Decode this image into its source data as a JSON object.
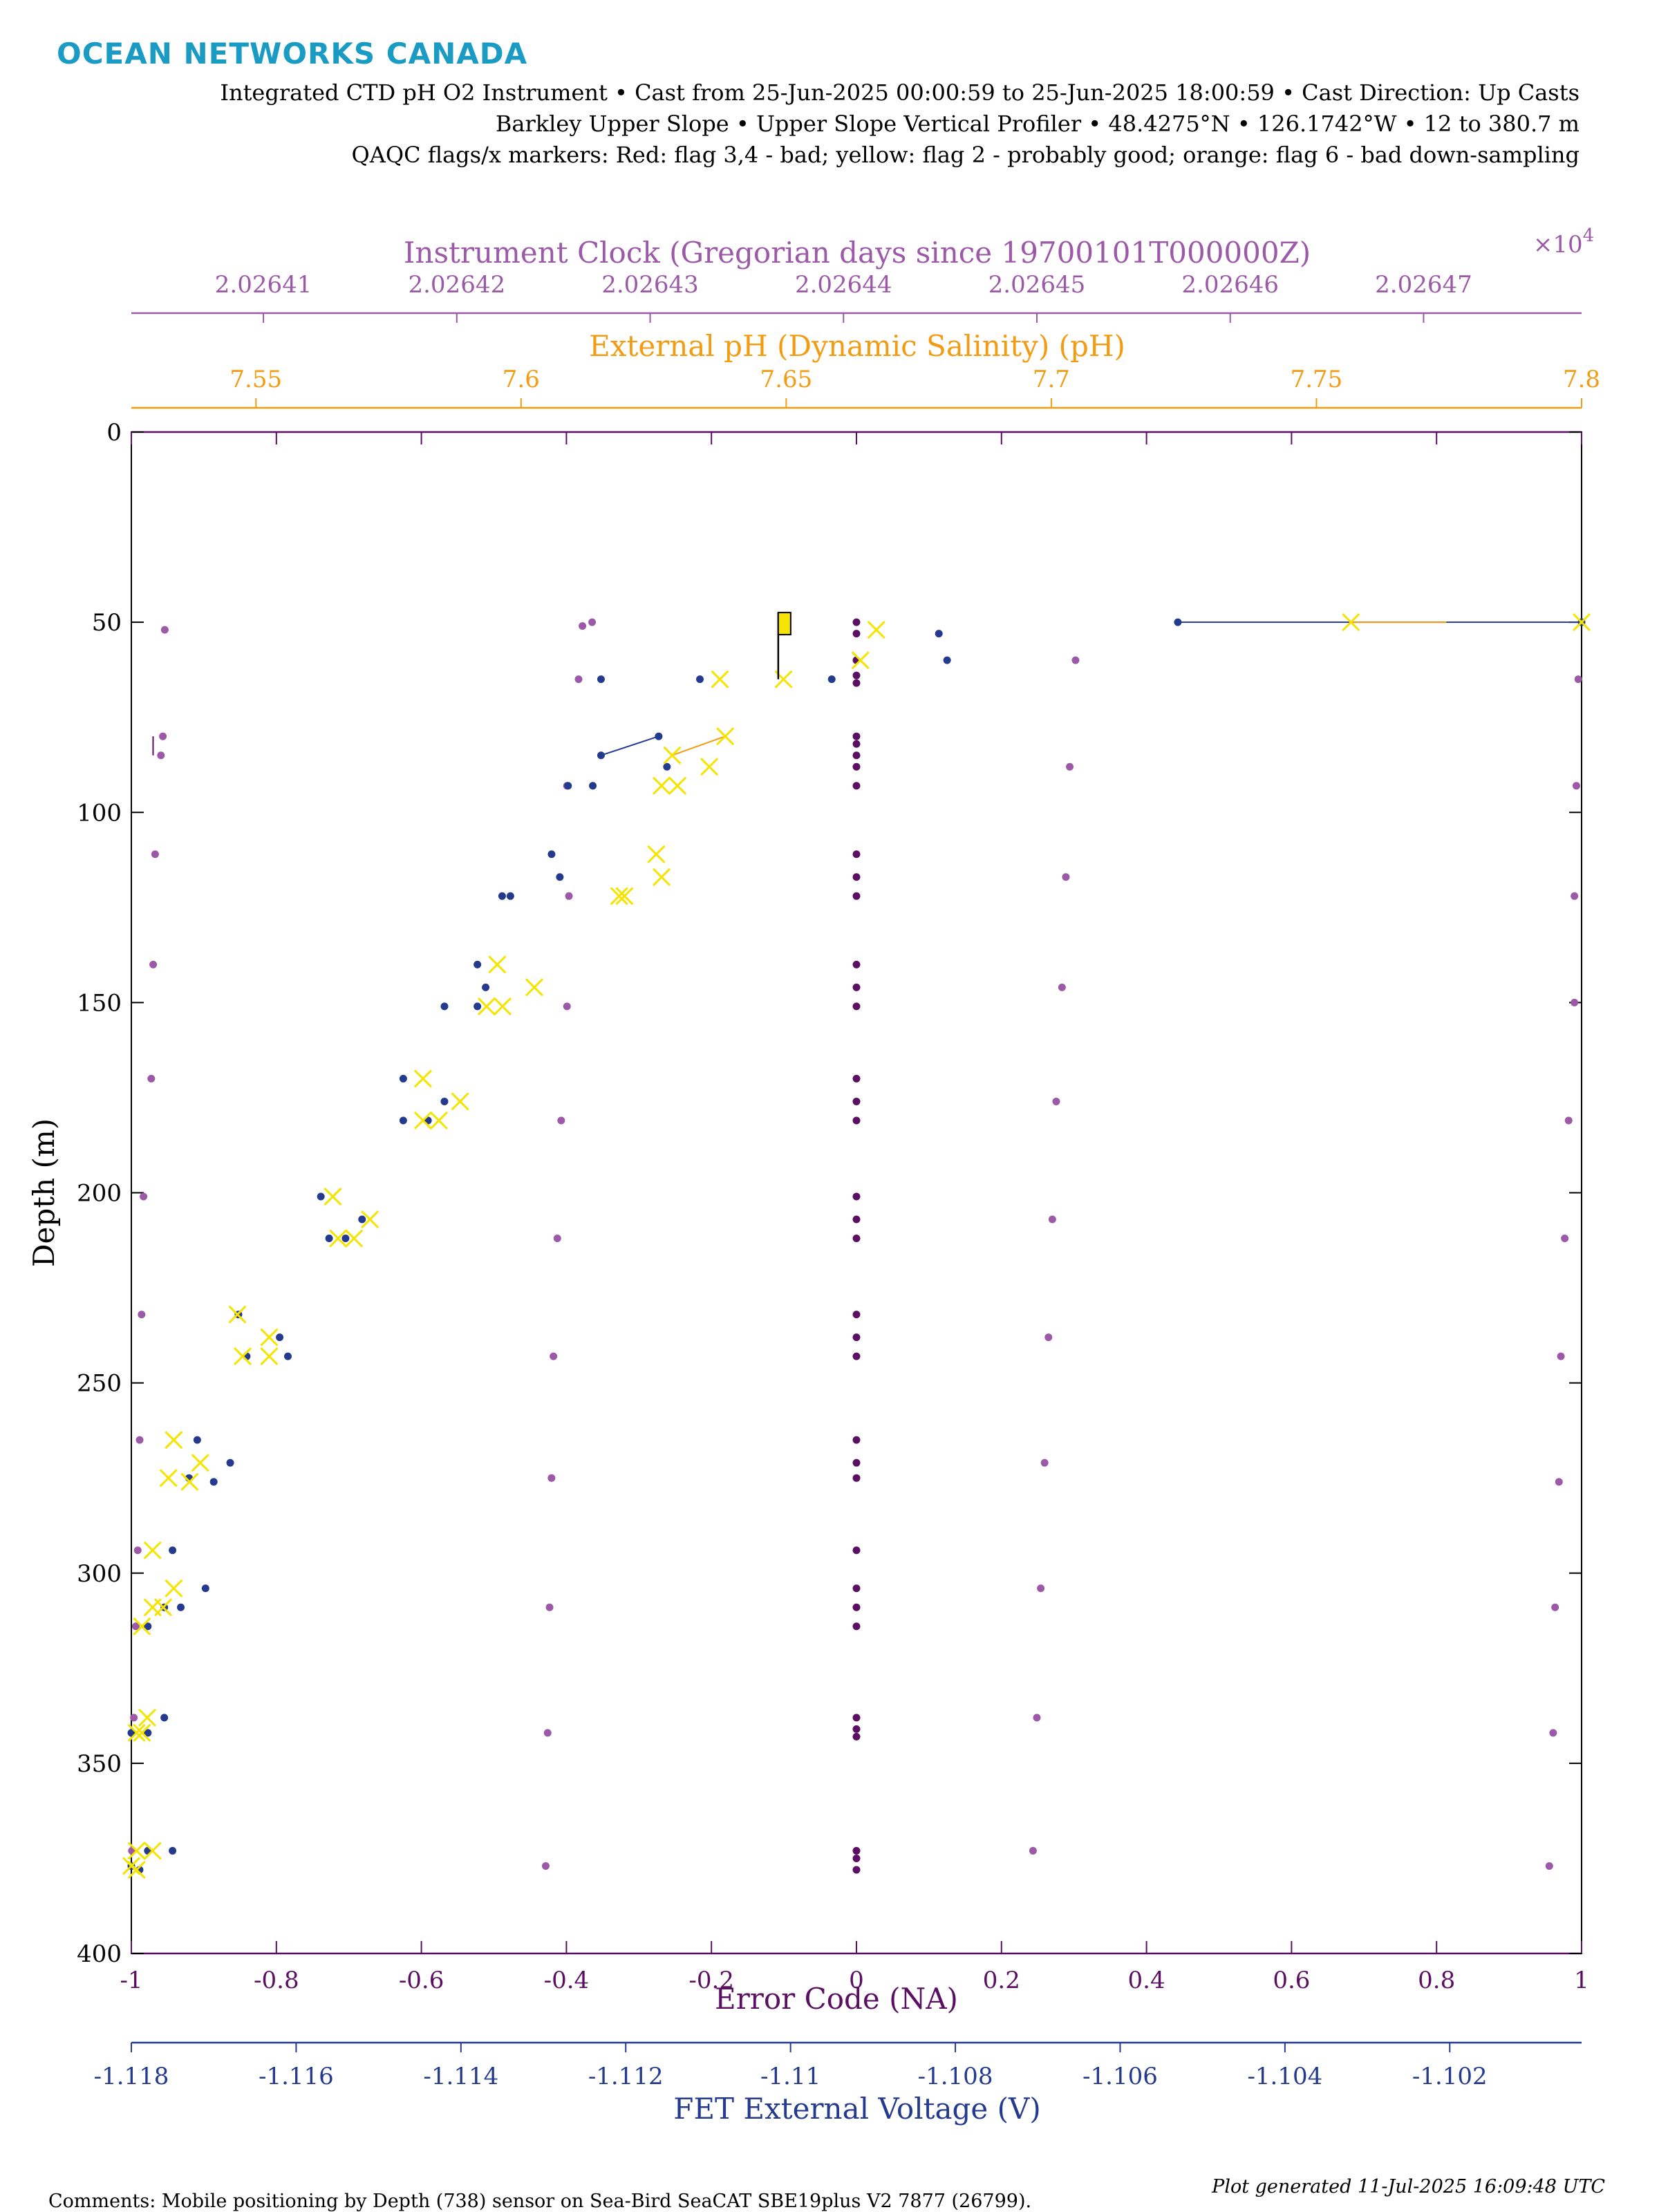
{
  "header": {
    "logo": "OCEAN NETWORKS CANADA",
    "line1": "Integrated CTD pH O2 Instrument • Cast from 25-Jun-2025 00:00:59 to 25-Jun-2025 18:00:59 • Cast Direction: Up Casts",
    "line2": "Barkley Upper Slope • Upper Slope Vertical Profiler • 48.4275°N • 126.1742°W • 12 to 380.7 m",
    "line3": "QAQC flags/x markers: Red: flag 3,4 - bad; yellow: flag 2 - probably good; orange: flag 6 - bad down-sampling"
  },
  "footer": {
    "comments": "Comments: Mobile positioning by Depth (738) sensor on Sea-Bird SeaCAT SBE19plus V2 7877 (26799).",
    "generated": "Plot generated 11-Jul-2025 16:09:48 UTC"
  },
  "colors": {
    "clock": "#9b59a8",
    "ph": "#f39c12",
    "error": "#5b0f63",
    "voltage": "#243a8e",
    "flag_yellow": "#f5e400",
    "flag_orange": "#f39c12"
  },
  "chart_data": {
    "type": "scatter",
    "y_axis": {
      "label": "Depth (m)",
      "range": [
        0,
        400
      ],
      "reversed": true,
      "ticks": [
        0,
        50,
        100,
        150,
        200,
        250,
        300,
        350,
        400
      ]
    },
    "axes": {
      "clock": {
        "label": "Instrument Clock (Gregorian days since 19700101T000000Z)",
        "exponent_label": "×10",
        "exponent_power": "4",
        "range": [
          20264.0317,
          20264.7817
        ],
        "ticks": [
          20264.1,
          20264.2,
          20264.3,
          20264.4,
          20264.5,
          20264.6,
          20264.7
        ],
        "tick_labels": [
          "2.02641",
          "2.02642",
          "2.02643",
          "2.02644",
          "2.02645",
          "2.02646",
          "2.02647"
        ]
      },
      "ph": {
        "label": "External pH (Dynamic Salinity) (pH)",
        "range": [
          7.5265,
          7.8
        ],
        "ticks": [
          7.55,
          7.6,
          7.65,
          7.7,
          7.75,
          7.8
        ],
        "tick_labels": [
          "7.55",
          "7.6",
          "7.65",
          "7.7",
          "7.75",
          "7.8"
        ]
      },
      "error": {
        "label": "Error Code (NA)",
        "range": [
          -1,
          1
        ],
        "ticks": [
          -1,
          -0.8,
          -0.6,
          -0.4,
          -0.2,
          0,
          0.2,
          0.4,
          0.6,
          0.8,
          1
        ],
        "tick_labels": [
          "-1",
          "-0.8",
          "-0.6",
          "-0.4",
          "-0.2",
          "0",
          "0.2",
          "0.4",
          "0.6",
          "0.8",
          "1"
        ]
      },
      "voltage": {
        "label": "FET External Voltage (V)",
        "range": [
          -1.118,
          -1.1004
        ],
        "ticks": [
          -1.118,
          -1.116,
          -1.114,
          -1.112,
          -1.11,
          -1.108,
          -1.106,
          -1.104,
          -1.102
        ],
        "tick_labels": [
          "-1.118",
          "-1.116",
          "-1.114",
          "-1.112",
          "-1.11",
          "-1.108",
          "-1.106",
          "-1.104",
          "-1.102"
        ]
      }
    },
    "series": [
      {
        "axis": "clock",
        "color": "#9b59a8",
        "points": [
          [
            20264.049,
            52
          ],
          [
            20264.048,
            80
          ],
          [
            20264.047,
            85
          ],
          [
            20264.044,
            111
          ],
          [
            20264.043,
            140
          ],
          [
            20264.042,
            170
          ],
          [
            20264.038,
            201
          ],
          [
            20264.037,
            232
          ],
          [
            20264.036,
            265
          ],
          [
            20264.035,
            294
          ],
          [
            20264.034,
            314
          ],
          [
            20264.033,
            338
          ],
          [
            20264.032,
            373
          ],
          [
            20264.27,
            50
          ],
          [
            20264.265,
            51
          ],
          [
            20264.263,
            65
          ],
          [
            20264.257,
            93
          ],
          [
            20264.258,
            122
          ],
          [
            20264.257,
            151
          ],
          [
            20264.254,
            181
          ],
          [
            20264.252,
            212
          ],
          [
            20264.25,
            243
          ],
          [
            20264.249,
            275
          ],
          [
            20264.248,
            309
          ],
          [
            20264.247,
            342
          ],
          [
            20264.246,
            377
          ],
          [
            20264.52,
            60
          ],
          [
            20264.517,
            88
          ],
          [
            20264.515,
            117
          ],
          [
            20264.513,
            146
          ],
          [
            20264.51,
            176
          ],
          [
            20264.508,
            207
          ],
          [
            20264.506,
            238
          ],
          [
            20264.504,
            271
          ],
          [
            20264.502,
            304
          ],
          [
            20264.5,
            338
          ],
          [
            20264.498,
            373
          ],
          [
            20264.78,
            65
          ],
          [
            20264.779,
            93
          ],
          [
            20264.778,
            122
          ],
          [
            20264.778,
            150
          ],
          [
            20264.775,
            181
          ],
          [
            20264.773,
            212
          ],
          [
            20264.771,
            243
          ],
          [
            20264.77,
            276
          ],
          [
            20264.768,
            309
          ],
          [
            20264.767,
            342
          ],
          [
            20264.765,
            377
          ]
        ]
      },
      {
        "axis": "error",
        "color": "#5b0f63",
        "points": [
          [
            0,
            50
          ],
          [
            0,
            53
          ],
          [
            0,
            60
          ],
          [
            0,
            64
          ],
          [
            0,
            66
          ],
          [
            0,
            80
          ],
          [
            0,
            82
          ],
          [
            0,
            85
          ],
          [
            0,
            88
          ],
          [
            0,
            93
          ],
          [
            0,
            111
          ],
          [
            0,
            117
          ],
          [
            0,
            122
          ],
          [
            0,
            140
          ],
          [
            0,
            146
          ],
          [
            0,
            151
          ],
          [
            0,
            170
          ],
          [
            0,
            176
          ],
          [
            0,
            181
          ],
          [
            0,
            201
          ],
          [
            0,
            207
          ],
          [
            0,
            212
          ],
          [
            0,
            232
          ],
          [
            0,
            238
          ],
          [
            0,
            243
          ],
          [
            0,
            265
          ],
          [
            0,
            271
          ],
          [
            0,
            275
          ],
          [
            0,
            294
          ],
          [
            0,
            304
          ],
          [
            0,
            309
          ],
          [
            0,
            314
          ],
          [
            0,
            338
          ],
          [
            0,
            341
          ],
          [
            0,
            343
          ],
          [
            0,
            373
          ],
          [
            0,
            375
          ],
          [
            0,
            378
          ]
        ]
      },
      {
        "axis": "voltage",
        "color": "#243a8e",
        "points": [
          [
            -1.1004,
            50
          ],
          [
            -1.1053,
            50
          ],
          [
            -1.1095,
            65
          ],
          [
            -1.1082,
            53
          ],
          [
            -1.1081,
            60
          ],
          [
            -1.1111,
            65
          ],
          [
            -1.1123,
            65
          ],
          [
            -1.1123,
            85
          ],
          [
            -1.1116,
            80
          ],
          [
            -1.1115,
            88
          ],
          [
            -1.1127,
            93
          ],
          [
            -1.1124,
            93
          ],
          [
            -1.1129,
            111
          ],
          [
            -1.1128,
            117
          ],
          [
            -1.1135,
            122
          ],
          [
            -1.1134,
            122
          ],
          [
            -1.1138,
            140
          ],
          [
            -1.1137,
            146
          ],
          [
            -1.1142,
            151
          ],
          [
            -1.1138,
            151
          ],
          [
            -1.1147,
            170
          ],
          [
            -1.1142,
            176
          ],
          [
            -1.1147,
            181
          ],
          [
            -1.1144,
            181
          ],
          [
            -1.1157,
            201
          ],
          [
            -1.1152,
            207
          ],
          [
            -1.1156,
            212
          ],
          [
            -1.1154,
            212
          ],
          [
            -1.1167,
            232
          ],
          [
            -1.1162,
            238
          ],
          [
            -1.1166,
            243
          ],
          [
            -1.1161,
            243
          ],
          [
            -1.1172,
            265
          ],
          [
            -1.1168,
            271
          ],
          [
            -1.1173,
            275
          ],
          [
            -1.117,
            276
          ],
          [
            -1.1175,
            294
          ],
          [
            -1.1171,
            304
          ],
          [
            -1.1176,
            309
          ],
          [
            -1.1174,
            309
          ],
          [
            -1.1178,
            314
          ],
          [
            -1.1176,
            338
          ],
          [
            -1.118,
            342
          ],
          [
            -1.1178,
            342
          ],
          [
            -1.1175,
            373
          ],
          [
            -1.1178,
            373
          ],
          [
            -1.118,
            377
          ],
          [
            -1.1179,
            378
          ]
        ]
      }
    ],
    "connectors": [
      {
        "axis": "voltage",
        "color": "#243a8e",
        "points": [
          [
            -1.1053,
            50
          ],
          [
            -1.1004,
            50
          ]
        ]
      },
      {
        "axis": "voltage",
        "color": "#243a8e",
        "points": [
          [
            -1.1123,
            85
          ],
          [
            -1.1116,
            80
          ]
        ]
      },
      {
        "axis": "error",
        "color": "#5b0f63",
        "points": [
          [
            -0.97,
            80
          ],
          [
            -0.97,
            85
          ]
        ]
      },
      {
        "axis": "ph",
        "color": "#000000",
        "points": [
          [
            7.5265,
            355
          ],
          [
            7.5265,
            380
          ]
        ]
      }
    ],
    "flags": {
      "color": "#f5e400",
      "orange_lines": [
        {
          "points": [
            [
              7.7565,
              50
            ],
            [
              7.7745,
              50
            ]
          ]
        },
        {
          "points": [
            [
              7.6285,
              85
            ],
            [
              7.6385,
              80
            ]
          ]
        }
      ],
      "marker": "x",
      "points": [
        [
          7.7565,
          50
        ],
        [
          7.8,
          50
        ],
        [
          7.667,
          52
        ],
        [
          7.664,
          60
        ],
        [
          7.6495,
          65
        ],
        [
          7.6375,
          65
        ],
        [
          7.6285,
          85
        ],
        [
          7.6385,
          80
        ],
        [
          7.6355,
          88
        ],
        [
          7.6265,
          93
        ],
        [
          7.6295,
          93
        ],
        [
          7.6255,
          111
        ],
        [
          7.6265,
          117
        ],
        [
          7.6185,
          122
        ],
        [
          7.6195,
          122
        ],
        [
          7.5955,
          140
        ],
        [
          7.6025,
          146
        ],
        [
          7.5935,
          151
        ],
        [
          7.5965,
          151
        ],
        [
          7.5815,
          170
        ],
        [
          7.5885,
          176
        ],
        [
          7.5815,
          181
        ],
        [
          7.5845,
          181
        ],
        [
          7.5645,
          201
        ],
        [
          7.5715,
          207
        ],
        [
          7.5655,
          212
        ],
        [
          7.5685,
          212
        ],
        [
          7.5465,
          232
        ],
        [
          7.5525,
          238
        ],
        [
          7.5475,
          243
        ],
        [
          7.5525,
          243
        ],
        [
          7.5345,
          265
        ],
        [
          7.5395,
          271
        ],
        [
          7.5335,
          275
        ],
        [
          7.5375,
          276
        ],
        [
          7.5305,
          294
        ],
        [
          7.5345,
          304
        ],
        [
          7.5305,
          309
        ],
        [
          7.5325,
          309
        ],
        [
          7.5285,
          314
        ],
        [
          7.5295,
          338
        ],
        [
          7.5275,
          342
        ],
        [
          7.5285,
          342
        ],
        [
          7.5305,
          373
        ],
        [
          7.5275,
          373
        ],
        [
          7.5265,
          377
        ],
        [
          7.5275,
          378
        ]
      ],
      "marker_flag": {
        "x": 7.6485,
        "y": 50,
        "pole_bottom": 65
      }
    }
  }
}
